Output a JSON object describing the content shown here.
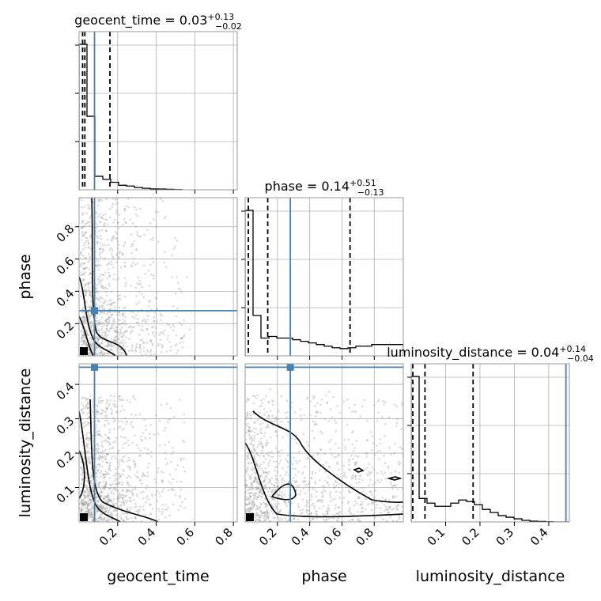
{
  "chart_data": {
    "type": "corner",
    "parameters": [
      "geocent_time",
      "phase",
      "luminosity_distance"
    ],
    "axis_labels": {
      "geocent_time": "geocent_time",
      "phase": "phase",
      "luminosity_distance": "luminosity_distance"
    },
    "ranges": {
      "geocent_time": [
        0.0,
        0.82
      ],
      "phase": [
        0.0,
        0.98
      ],
      "luminosity_distance": [
        0.0,
        0.46
      ]
    },
    "ticks": {
      "geocent_time": [
        {
          "v": 0.2,
          "t": "0.2"
        },
        {
          "v": 0.4,
          "t": "0.4"
        },
        {
          "v": 0.6,
          "t": "0.6"
        },
        {
          "v": 0.8,
          "t": "0.8"
        }
      ],
      "phase": [
        {
          "v": 0.2,
          "t": "0.2"
        },
        {
          "v": 0.4,
          "t": "0.4"
        },
        {
          "v": 0.6,
          "t": "0.6"
        },
        {
          "v": 0.8,
          "t": "0.8"
        }
      ],
      "luminosity_distance": [
        {
          "v": 0.1,
          "t": "0.1"
        },
        {
          "v": 0.2,
          "t": "0.2"
        },
        {
          "v": 0.3,
          "t": "0.3"
        },
        {
          "v": 0.4,
          "t": "0.4"
        }
      ]
    },
    "titles": {
      "geocent_time": {
        "name": "geocent_time",
        "median": "0.03",
        "plus": "+0.13",
        "minus": "−0.02"
      },
      "phase": {
        "name": "phase",
        "median": "0.14",
        "plus": "+0.51",
        "minus": "−0.13"
      },
      "luminosity_distance": {
        "name": "luminosity_distance",
        "median": "0.04",
        "plus": "+0.14",
        "minus": "−0.04"
      }
    },
    "truths": {
      "geocent_time": 0.08,
      "phase": 0.28,
      "luminosity_distance": 0.45
    },
    "quantiles": {
      "geocent_time": [
        0.01,
        0.03,
        0.16
      ],
      "phase": [
        0.01,
        0.14,
        0.65
      ],
      "luminosity_distance": [
        0.0,
        0.04,
        0.18
      ]
    },
    "histograms": {
      "geocent_time": {
        "bin_width": 0.041,
        "values": [
          0.97,
          0.49,
          0.09,
          0.07,
          0.05,
          0.03,
          0.025,
          0.015,
          0.01,
          0.006,
          0.005,
          0.003,
          0.001
        ]
      },
      "phase": {
        "bin_width": 0.049,
        "values": [
          0.9,
          0.25,
          0.11,
          0.12,
          0.11,
          0.11,
          0.1,
          0.09,
          0.08,
          0.07,
          0.06,
          0.05,
          0.045,
          0.05,
          0.06,
          0.06,
          0.07,
          0.07,
          0.07,
          0.07
        ]
      },
      "luminosity_distance": {
        "bin_width": 0.023,
        "values": [
          0.93,
          0.15,
          0.12,
          0.1,
          0.1,
          0.12,
          0.14,
          0.13,
          0.11,
          0.08,
          0.06,
          0.04,
          0.03,
          0.02,
          0.01,
          0.005,
          0.003,
          0.001,
          0.0,
          0.0
        ]
      }
    },
    "grid": true,
    "colors": {
      "truth": "#4682b4",
      "quantile": "#000000",
      "contour": "#000000",
      "points": "#9a9a9a"
    }
  }
}
